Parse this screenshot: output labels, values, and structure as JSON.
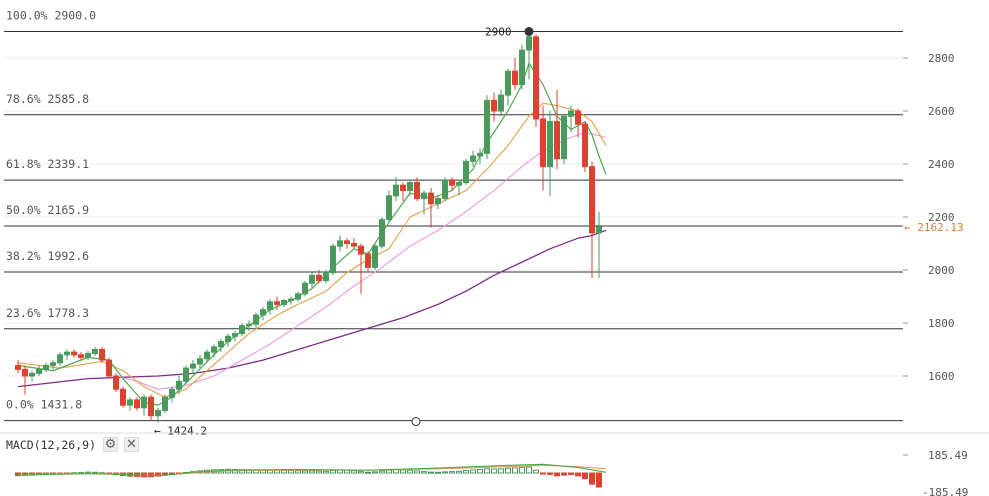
{
  "macd": {
    "title": "MACD(12,26,9)",
    "settings_icon": "gear-icon",
    "close_icon": "close-icon",
    "scale_top": "185.49",
    "scale_bottom": "-185.49"
  },
  "colors": {
    "up": "#4a9a5e",
    "down": "#d9432f",
    "ma_fast": "#4fa84f",
    "ma_mid": "#e3a04a",
    "ma_slow": "#e59ae0",
    "ma_long": "#7b2d86",
    "fib_line": "#333333",
    "price_tag": "#d9822b"
  },
  "chart_data": {
    "type": "candlestick",
    "y_axis": {
      "ticks": [
        1600,
        1800,
        2000,
        2200,
        2400,
        2600,
        2800
      ],
      "range": [
        1395,
        2945
      ]
    },
    "fibonacci": [
      {
        "label": "100.0% 2900.0",
        "price": 2900.0
      },
      {
        "label": "78.6% 2585.8",
        "price": 2585.8
      },
      {
        "label": "61.8% 2339.1",
        "price": 2339.1
      },
      {
        "label": "50.0% 2165.9",
        "price": 2165.9
      },
      {
        "label": "38.2% 1992.6",
        "price": 1992.6
      },
      {
        "label": "23.6% 1778.3",
        "price": 1778.3
      },
      {
        "label": "0.0% 1431.8",
        "price": 1431.8
      }
    ],
    "annotations": {
      "high_label": "2900",
      "high_price": 2900,
      "low_label": "← 1424.2",
      "low_price": 1424.2,
      "current_label": "← 2162.13",
      "current_price": 2162.13
    },
    "candles": [
      [
        1640,
        1660,
        1610,
        1625
      ],
      [
        1625,
        1640,
        1530,
        1600
      ],
      [
        1600,
        1620,
        1580,
        1610
      ],
      [
        1610,
        1640,
        1600,
        1625
      ],
      [
        1625,
        1650,
        1615,
        1640
      ],
      [
        1640,
        1660,
        1625,
        1650
      ],
      [
        1650,
        1690,
        1640,
        1680
      ],
      [
        1680,
        1700,
        1660,
        1690
      ],
      [
        1690,
        1700,
        1670,
        1680
      ],
      [
        1680,
        1690,
        1660,
        1670
      ],
      [
        1670,
        1695,
        1660,
        1685
      ],
      [
        1685,
        1710,
        1675,
        1700
      ],
      [
        1700,
        1710,
        1650,
        1660
      ],
      [
        1660,
        1670,
        1590,
        1600
      ],
      [
        1600,
        1610,
        1540,
        1550
      ],
      [
        1550,
        1560,
        1480,
        1490
      ],
      [
        1490,
        1520,
        1470,
        1510
      ],
      [
        1510,
        1520,
        1470,
        1480
      ],
      [
        1480,
        1530,
        1450,
        1520
      ],
      [
        1520,
        1530,
        1430,
        1450
      ],
      [
        1450,
        1480,
        1424,
        1470
      ],
      [
        1470,
        1530,
        1460,
        1520
      ],
      [
        1520,
        1560,
        1500,
        1550
      ],
      [
        1550,
        1600,
        1530,
        1580
      ],
      [
        1580,
        1640,
        1570,
        1630
      ],
      [
        1630,
        1660,
        1610,
        1645
      ],
      [
        1645,
        1680,
        1630,
        1665
      ],
      [
        1665,
        1700,
        1650,
        1690
      ],
      [
        1690,
        1720,
        1670,
        1710
      ],
      [
        1710,
        1740,
        1690,
        1730
      ],
      [
        1730,
        1760,
        1710,
        1750
      ],
      [
        1750,
        1770,
        1730,
        1760
      ],
      [
        1760,
        1800,
        1750,
        1790
      ],
      [
        1790,
        1810,
        1770,
        1795
      ],
      [
        1795,
        1840,
        1780,
        1830
      ],
      [
        1830,
        1860,
        1810,
        1850
      ],
      [
        1850,
        1890,
        1830,
        1880
      ],
      [
        1880,
        1900,
        1850,
        1870
      ],
      [
        1870,
        1890,
        1860,
        1885
      ],
      [
        1885,
        1900,
        1870,
        1890
      ],
      [
        1890,
        1920,
        1880,
        1910
      ],
      [
        1910,
        1960,
        1900,
        1950
      ],
      [
        1950,
        1990,
        1930,
        1980
      ],
      [
        1980,
        2000,
        1950,
        1960
      ],
      [
        1960,
        2000,
        1950,
        1990
      ],
      [
        1990,
        2100,
        1980,
        2090
      ],
      [
        2090,
        2130,
        2070,
        2110
      ],
      [
        2110,
        2120,
        2080,
        2100
      ],
      [
        2100,
        2120,
        2080,
        2090
      ],
      [
        2090,
        2100,
        1910,
        2060
      ],
      [
        2060,
        2070,
        1990,
        2010
      ],
      [
        2010,
        2100,
        2000,
        2090
      ],
      [
        2090,
        2200,
        2080,
        2190
      ],
      [
        2190,
        2300,
        2180,
        2280
      ],
      [
        2280,
        2350,
        2260,
        2320
      ],
      [
        2320,
        2330,
        2260,
        2300
      ],
      [
        2300,
        2340,
        2280,
        2330
      ],
      [
        2330,
        2350,
        2260,
        2270
      ],
      [
        2270,
        2300,
        2210,
        2290
      ],
      [
        2290,
        2310,
        2160,
        2250
      ],
      [
        2250,
        2280,
        2230,
        2270
      ],
      [
        2270,
        2350,
        2260,
        2340
      ],
      [
        2340,
        2350,
        2300,
        2320
      ],
      [
        2320,
        2340,
        2280,
        2330
      ],
      [
        2330,
        2420,
        2320,
        2410
      ],
      [
        2410,
        2450,
        2390,
        2430
      ],
      [
        2430,
        2460,
        2400,
        2440
      ],
      [
        2440,
        2660,
        2420,
        2640
      ],
      [
        2640,
        2670,
        2560,
        2600
      ],
      [
        2600,
        2680,
        2580,
        2660
      ],
      [
        2660,
        2760,
        2620,
        2750
      ],
      [
        2750,
        2800,
        2680,
        2700
      ],
      [
        2700,
        2850,
        2680,
        2830
      ],
      [
        2830,
        2900,
        2720,
        2880
      ],
      [
        2880,
        2890,
        2540,
        2570
      ],
      [
        2570,
        2620,
        2300,
        2390
      ],
      [
        2390,
        2600,
        2280,
        2560
      ],
      [
        2560,
        2680,
        2380,
        2420
      ],
      [
        2420,
        2590,
        2400,
        2580
      ],
      [
        2580,
        2620,
        2520,
        2600
      ],
      [
        2600,
        2610,
        2500,
        2550
      ],
      [
        2550,
        2560,
        2370,
        2390
      ],
      [
        2390,
        2410,
        1970,
        2140
      ],
      [
        2140,
        2220,
        1970,
        2162
      ]
    ],
    "ma_fast": [
      [
        0,
        1640
      ],
      [
        5,
        1620
      ],
      [
        10,
        1670
      ],
      [
        13,
        1660
      ],
      [
        15,
        1590
      ],
      [
        18,
        1500
      ],
      [
        20,
        1490
      ],
      [
        22,
        1520
      ],
      [
        25,
        1600
      ],
      [
        28,
        1680
      ],
      [
        30,
        1730
      ],
      [
        33,
        1790
      ],
      [
        36,
        1850
      ],
      [
        39,
        1885
      ],
      [
        42,
        1930
      ],
      [
        45,
        2010
      ],
      [
        48,
        2080
      ],
      [
        50,
        2060
      ],
      [
        53,
        2180
      ],
      [
        56,
        2290
      ],
      [
        59,
        2270
      ],
      [
        62,
        2300
      ],
      [
        65,
        2380
      ],
      [
        67,
        2480
      ],
      [
        70,
        2600
      ],
      [
        72,
        2700
      ],
      [
        73,
        2780
      ],
      [
        75,
        2700
      ],
      [
        77,
        2580
      ],
      [
        79,
        2530
      ],
      [
        81,
        2560
      ],
      [
        82,
        2510
      ],
      [
        83,
        2430
      ],
      [
        84,
        2360
      ]
    ],
    "ma_mid": [
      [
        0,
        1650
      ],
      [
        6,
        1630
      ],
      [
        12,
        1655
      ],
      [
        15,
        1620
      ],
      [
        18,
        1560
      ],
      [
        21,
        1520
      ],
      [
        24,
        1550
      ],
      [
        27,
        1620
      ],
      [
        30,
        1690
      ],
      [
        33,
        1760
      ],
      [
        37,
        1830
      ],
      [
        40,
        1870
      ],
      [
        44,
        1920
      ],
      [
        47,
        1990
      ],
      [
        50,
        2040
      ],
      [
        53,
        2080
      ],
      [
        56,
        2200
      ],
      [
        60,
        2250
      ],
      [
        64,
        2300
      ],
      [
        67,
        2380
      ],
      [
        70,
        2470
      ],
      [
        73,
        2580
      ],
      [
        75,
        2630
      ],
      [
        77,
        2620
      ],
      [
        80,
        2600
      ],
      [
        82,
        2560
      ],
      [
        84,
        2470
      ]
    ],
    "ma_slow": [
      [
        14,
        1600
      ],
      [
        17,
        1580
      ],
      [
        20,
        1550
      ],
      [
        24,
        1565
      ],
      [
        28,
        1600
      ],
      [
        32,
        1660
      ],
      [
        36,
        1720
      ],
      [
        40,
        1790
      ],
      [
        44,
        1860
      ],
      [
        48,
        1940
      ],
      [
        52,
        2010
      ],
      [
        56,
        2090
      ],
      [
        60,
        2150
      ],
      [
        64,
        2220
      ],
      [
        68,
        2300
      ],
      [
        72,
        2390
      ],
      [
        75,
        2450
      ],
      [
        78,
        2490
      ],
      [
        81,
        2520
      ],
      [
        84,
        2500
      ]
    ],
    "ma_long": [
      [
        0,
        1560
      ],
      [
        5,
        1575
      ],
      [
        10,
        1590
      ],
      [
        15,
        1595
      ],
      [
        20,
        1600
      ],
      [
        25,
        1610
      ],
      [
        30,
        1630
      ],
      [
        35,
        1660
      ],
      [
        40,
        1700
      ],
      [
        45,
        1740
      ],
      [
        50,
        1780
      ],
      [
        55,
        1820
      ],
      [
        60,
        1870
      ],
      [
        64,
        1920
      ],
      [
        68,
        1980
      ],
      [
        72,
        2030
      ],
      [
        76,
        2080
      ],
      [
        80,
        2120
      ],
      [
        82,
        2130
      ],
      [
        84,
        2150
      ]
    ],
    "macd_histogram": [
      -0.18,
      -0.17,
      -0.15,
      -0.12,
      -0.1,
      -0.07,
      -0.05,
      -0.03,
      0.02,
      0.04,
      0.06,
      0.05,
      0.02,
      -0.05,
      -0.12,
      -0.18,
      -0.22,
      -0.24,
      -0.27,
      -0.26,
      -0.22,
      -0.16,
      -0.1,
      -0.05,
      0.04,
      0.1,
      0.16,
      0.2,
      0.23,
      0.24,
      0.26,
      0.25,
      0.24,
      0.23,
      0.22,
      0.21,
      0.2,
      0.19,
      0.18,
      0.17,
      0.16,
      0.15,
      0.15,
      0.14,
      0.12,
      0.18,
      0.22,
      0.2,
      0.16,
      0.1,
      0.05,
      0.08,
      0.14,
      0.2,
      0.24,
      0.22,
      0.2,
      0.15,
      0.1,
      0.06,
      0.05,
      0.08,
      0.1,
      0.12,
      0.18,
      0.22,
      0.25,
      0.3,
      0.28,
      0.3,
      0.34,
      0.36,
      0.4,
      0.42,
      0.2,
      -0.05,
      -0.1,
      -0.2,
      -0.15,
      -0.1,
      -0.2,
      -0.4,
      -0.8,
      -1.0
    ],
    "macd_line": [
      [
        0,
        -0.15
      ],
      [
        10,
        -0.05
      ],
      [
        15,
        -0.1
      ],
      [
        20,
        -0.2
      ],
      [
        25,
        0.05
      ],
      [
        30,
        0.2
      ],
      [
        40,
        0.25
      ],
      [
        50,
        0.2
      ],
      [
        60,
        0.35
      ],
      [
        70,
        0.55
      ],
      [
        75,
        0.62
      ],
      [
        80,
        0.4
      ],
      [
        84,
        0.05
      ]
    ],
    "signal_line": [
      [
        0,
        -0.12
      ],
      [
        10,
        -0.02
      ],
      [
        15,
        -0.08
      ],
      [
        20,
        -0.18
      ],
      [
        25,
        0.0
      ],
      [
        30,
        0.15
      ],
      [
        40,
        0.22
      ],
      [
        50,
        0.2
      ],
      [
        60,
        0.3
      ],
      [
        70,
        0.45
      ],
      [
        75,
        0.55
      ],
      [
        80,
        0.45
      ],
      [
        84,
        0.3
      ]
    ]
  }
}
